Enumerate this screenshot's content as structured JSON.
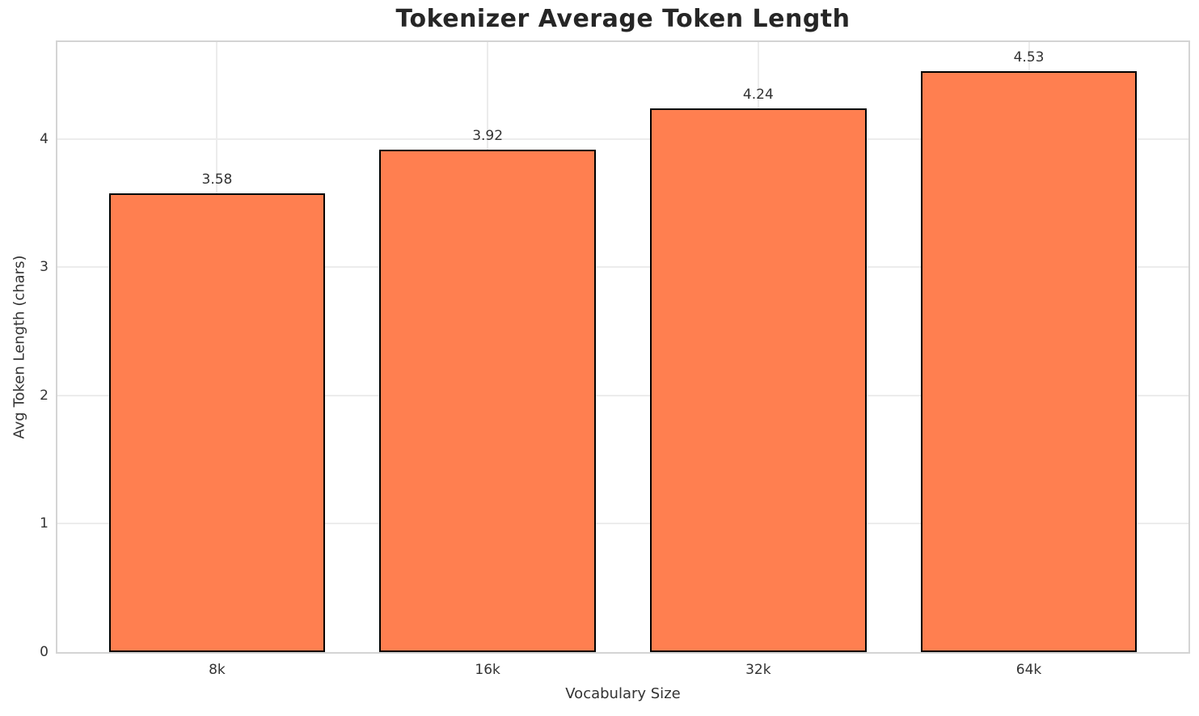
{
  "chart_data": {
    "type": "bar",
    "title": "Tokenizer Average Token Length",
    "xlabel": "Vocabulary Size",
    "ylabel": "Avg Token Length (chars)",
    "categories": [
      "8k",
      "16k",
      "32k",
      "64k"
    ],
    "values": [
      3.58,
      3.92,
      4.24,
      4.53
    ],
    "value_labels": [
      "3.58",
      "3.92",
      "4.24",
      "4.53"
    ],
    "yticks": [
      "0",
      "1",
      "2",
      "3",
      "4"
    ],
    "ytick_values": [
      0,
      1,
      2,
      3,
      4
    ],
    "ylim": [
      0,
      4.7565
    ],
    "xlim": [
      -0.59,
      3.59
    ],
    "bar_width": 0.8,
    "grid": true,
    "legend": null,
    "colors": {
      "bar_fill": "#FF7F50",
      "bar_edge": "#000000",
      "grid": "#ececec",
      "spine": "#d4d4d4",
      "text": "#333333",
      "title": "#262626",
      "background": "#ffffff"
    }
  }
}
